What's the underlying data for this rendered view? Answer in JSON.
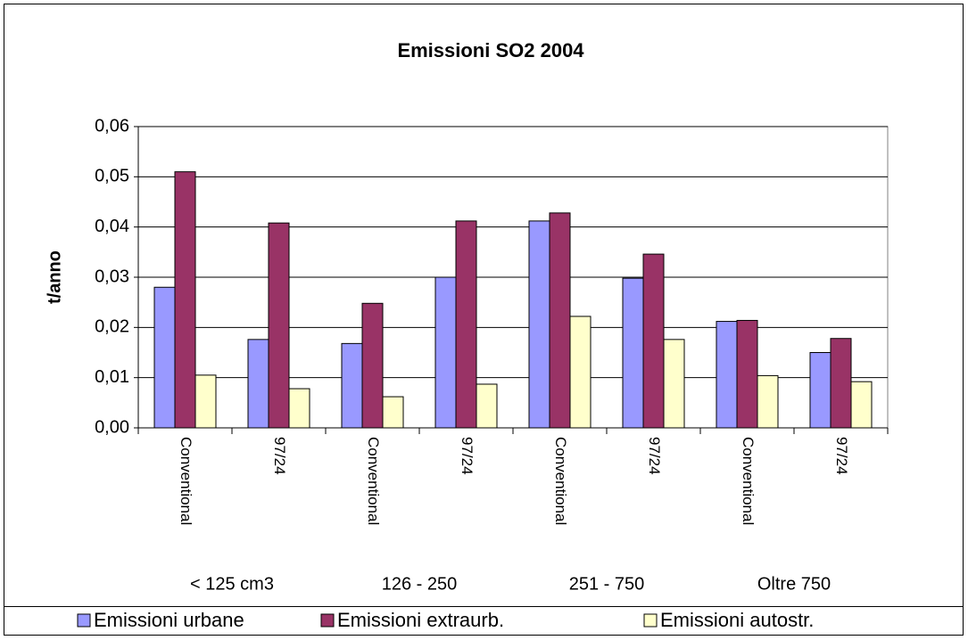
{
  "chart_data": {
    "type": "bar",
    "title": "Emissioni SO2 2004",
    "y_label": "t/anno",
    "categories": [
      "Conventional",
      "97/24",
      "Conventional",
      "97/24",
      "Conventional",
      "97/24",
      "Conventional",
      "97/24"
    ],
    "groups": [
      "< 125 cm3",
      "126 - 250",
      "251 - 750",
      "Oltre 750"
    ],
    "series": [
      {
        "name": "Emissioni urbane",
        "color": "#9999ff",
        "values": [
          0.028,
          0.0176,
          0.0168,
          0.03,
          0.0412,
          0.0298,
          0.0212,
          0.015
        ]
      },
      {
        "name": "Emissioni extraurb.",
        "color": "#993366",
        "values": [
          0.051,
          0.0408,
          0.0248,
          0.0412,
          0.0428,
          0.0346,
          0.0214,
          0.0178
        ]
      },
      {
        "name": "Emissioni autostr.",
        "color": "#ffffcc",
        "values": [
          0.0105,
          0.0078,
          0.0062,
          0.0087,
          0.0222,
          0.0176,
          0.0104,
          0.0092
        ]
      }
    ],
    "ylim": [
      0,
      0.06
    ],
    "yticks": [
      {
        "value": 0,
        "label": "0,00"
      },
      {
        "value": 0.01,
        "label": "0,01"
      },
      {
        "value": 0.02,
        "label": "0,02"
      },
      {
        "value": 0.03,
        "label": "0,03"
      },
      {
        "value": 0.04,
        "label": "0,04"
      },
      {
        "value": 0.05,
        "label": "0,05"
      },
      {
        "value": 0.06,
        "label": "0,06"
      }
    ],
    "grid": true,
    "legend": "bottom"
  }
}
